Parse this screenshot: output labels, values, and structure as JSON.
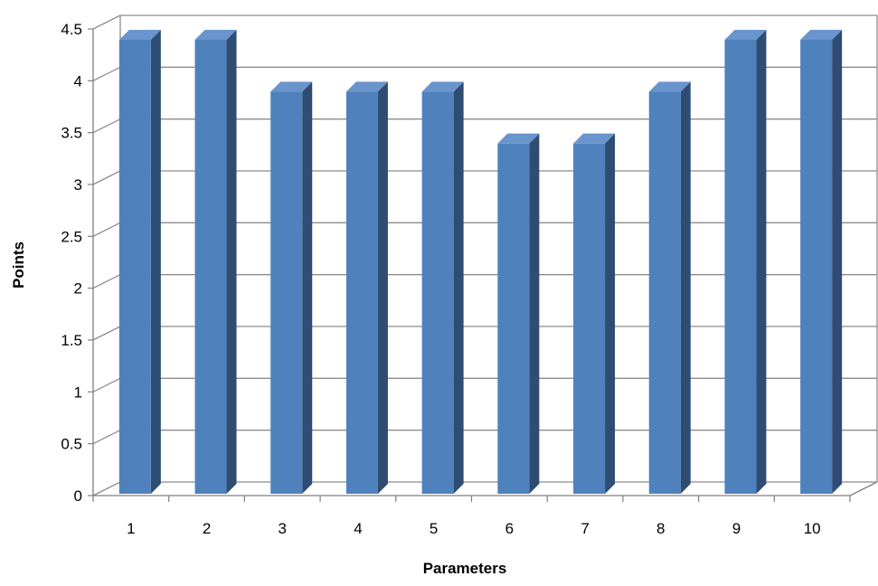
{
  "chart_data": {
    "type": "bar",
    "style": "3d-column",
    "xlabel": "Parameters",
    "ylabel": "Points",
    "categories": [
      "1",
      "2",
      "3",
      "4",
      "5",
      "6",
      "7",
      "8",
      "9",
      "10"
    ],
    "values": [
      4.5,
      4.5,
      4.0,
      4.0,
      4.0,
      3.5,
      3.5,
      4.0,
      4.5,
      4.5
    ],
    "ylim": [
      0,
      4.5
    ],
    "yticks": [
      "0",
      "0.5",
      "1",
      "1.5",
      "2",
      "2.5",
      "3",
      "3.5",
      "4",
      "4.5"
    ],
    "grid": true,
    "legend": "none",
    "colors": {
      "bar_front": "#4F81BD",
      "bar_side": "#2F4C73",
      "bar_top": "#6A95CC",
      "grid": "#8C8C8C",
      "axis": "#7F7F7F"
    }
  }
}
